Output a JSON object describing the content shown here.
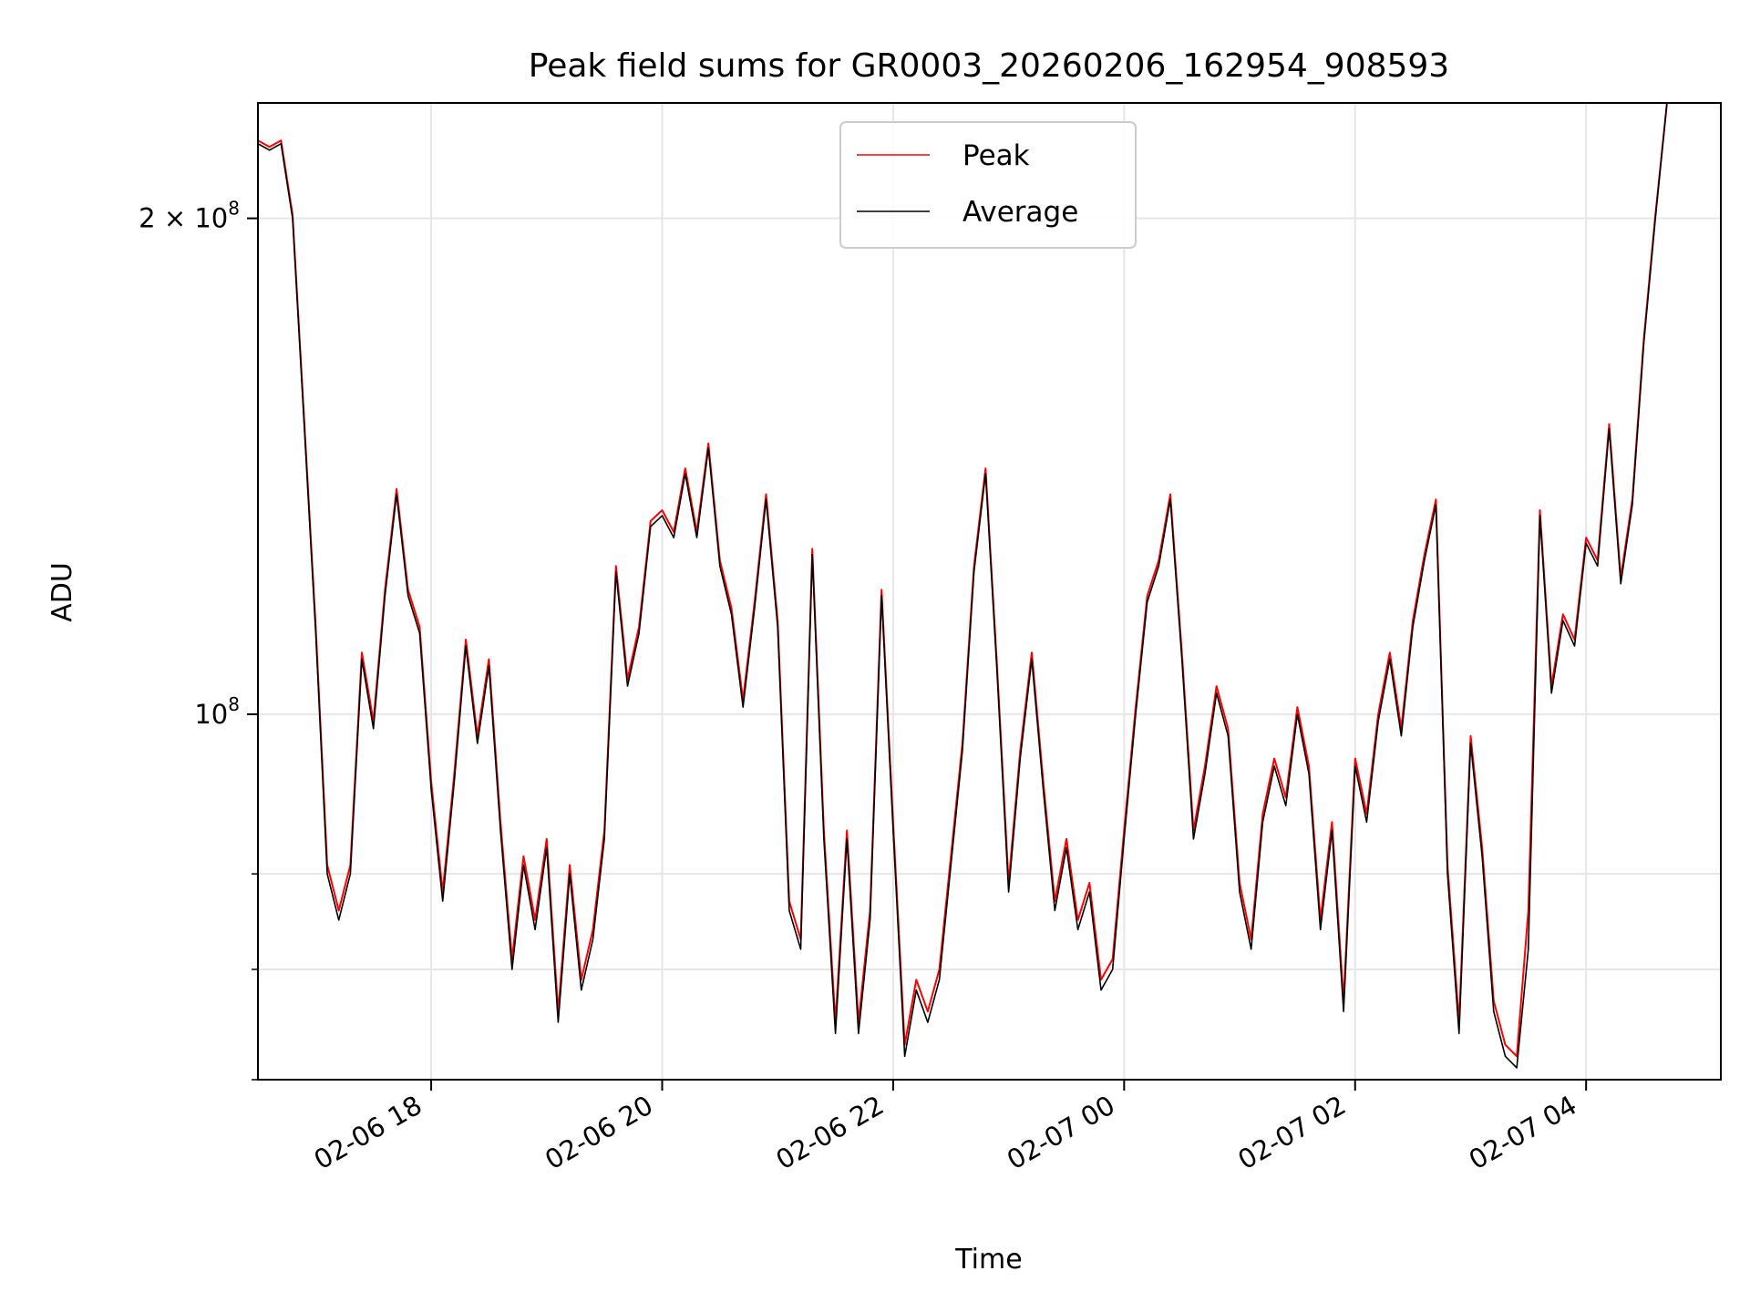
{
  "chart_data": {
    "type": "line",
    "title": "Peak field sums for GR0003_20260206_162954_908593",
    "xlabel": "Time",
    "ylabel": "ADU",
    "y_scale": "log",
    "grid": true,
    "legend_position": "top-center",
    "xlim": [
      "2026-02-06 16:30",
      "2026-02-07 05:10"
    ],
    "ylim": [
      60000000,
      235000000
    ],
    "x_ticks": [
      "2026-02-06 18:00",
      "2026-02-06 20:00",
      "2026-02-06 22:00",
      "2026-02-07 00:00",
      "2026-02-07 02:00",
      "2026-02-07 04:00"
    ],
    "x_tick_labels": [
      "02-06 18",
      "02-06 20",
      "02-06 22",
      "02-07 00",
      "02-07 02",
      "02-07 04"
    ],
    "y_major_ticks": [
      100000000,
      200000000
    ],
    "y_major_tick_labels": [
      {
        "mantissa": "",
        "base": "10",
        "exponent": "8"
      },
      {
        "mantissa": "2 × ",
        "base": "10",
        "exponent": "8"
      }
    ],
    "y_minor_ticks": [
      60000000,
      70000000,
      80000000
    ],
    "series": [
      {
        "name": "Peak",
        "color": "#ff0000"
      },
      {
        "name": "Average",
        "color": "#000000"
      }
    ],
    "x": [
      "2026-02-06 16:30",
      "2026-02-06 16:36",
      "2026-02-06 16:42",
      "2026-02-06 16:48",
      "2026-02-06 16:54",
      "2026-02-06 17:00",
      "2026-02-06 17:06",
      "2026-02-06 17:12",
      "2026-02-06 17:18",
      "2026-02-06 17:24",
      "2026-02-06 17:30",
      "2026-02-06 17:36",
      "2026-02-06 17:42",
      "2026-02-06 17:48",
      "2026-02-06 17:54",
      "2026-02-06 18:00",
      "2026-02-06 18:06",
      "2026-02-06 18:12",
      "2026-02-06 18:18",
      "2026-02-06 18:24",
      "2026-02-06 18:30",
      "2026-02-06 18:36",
      "2026-02-06 18:42",
      "2026-02-06 18:48",
      "2026-02-06 18:54",
      "2026-02-06 19:00",
      "2026-02-06 19:06",
      "2026-02-06 19:12",
      "2026-02-06 19:18",
      "2026-02-06 19:24",
      "2026-02-06 19:30",
      "2026-02-06 19:36",
      "2026-02-06 19:42",
      "2026-02-06 19:48",
      "2026-02-06 19:54",
      "2026-02-06 20:00",
      "2026-02-06 20:06",
      "2026-02-06 20:12",
      "2026-02-06 20:18",
      "2026-02-06 20:24",
      "2026-02-06 20:30",
      "2026-02-06 20:36",
      "2026-02-06 20:42",
      "2026-02-06 20:48",
      "2026-02-06 20:54",
      "2026-02-06 21:00",
      "2026-02-06 21:06",
      "2026-02-06 21:12",
      "2026-02-06 21:18",
      "2026-02-06 21:24",
      "2026-02-06 21:30",
      "2026-02-06 21:36",
      "2026-02-06 21:42",
      "2026-02-06 21:48",
      "2026-02-06 21:54",
      "2026-02-06 22:00",
      "2026-02-06 22:06",
      "2026-02-06 22:12",
      "2026-02-06 22:18",
      "2026-02-06 22:24",
      "2026-02-06 22:30",
      "2026-02-06 22:36",
      "2026-02-06 22:42",
      "2026-02-06 22:48",
      "2026-02-06 22:54",
      "2026-02-06 23:00",
      "2026-02-06 23:06",
      "2026-02-06 23:12",
      "2026-02-06 23:18",
      "2026-02-06 23:24",
      "2026-02-06 23:30",
      "2026-02-06 23:36",
      "2026-02-06 23:42",
      "2026-02-06 23:48",
      "2026-02-06 23:54",
      "2026-02-07 00:00",
      "2026-02-07 00:06",
      "2026-02-07 00:12",
      "2026-02-07 00:18",
      "2026-02-07 00:24",
      "2026-02-07 00:30",
      "2026-02-07 00:36",
      "2026-02-07 00:42",
      "2026-02-07 00:48",
      "2026-02-07 00:54",
      "2026-02-07 01:00",
      "2026-02-07 01:06",
      "2026-02-07 01:12",
      "2026-02-07 01:18",
      "2026-02-07 01:24",
      "2026-02-07 01:30",
      "2026-02-07 01:36",
      "2026-02-07 01:42",
      "2026-02-07 01:48",
      "2026-02-07 01:54",
      "2026-02-07 02:00",
      "2026-02-07 02:06",
      "2026-02-07 02:12",
      "2026-02-07 02:18",
      "2026-02-07 02:24",
      "2026-02-07 02:30",
      "2026-02-07 02:36",
      "2026-02-07 02:42",
      "2026-02-07 02:48",
      "2026-02-07 02:54",
      "2026-02-07 03:00",
      "2026-02-07 03:06",
      "2026-02-07 03:12",
      "2026-02-07 03:18",
      "2026-02-07 03:24",
      "2026-02-07 03:30",
      "2026-02-07 03:36",
      "2026-02-07 03:42",
      "2026-02-07 03:48",
      "2026-02-07 03:54",
      "2026-02-07 04:00",
      "2026-02-07 04:06",
      "2026-02-07 04:12",
      "2026-02-07 04:18",
      "2026-02-07 04:24",
      "2026-02-07 04:30",
      "2026-02-07 04:36",
      "2026-02-07 04:42",
      "2026-02-07 04:48",
      "2026-02-07 04:54",
      "2026-02-07 05:00",
      "2026-02-07 05:06"
    ],
    "average": [
      222000000,
      220000000,
      222000000,
      200000000,
      150000000,
      112000000,
      80000000,
      75000000,
      80000000,
      108000000,
      98000000,
      118000000,
      136000000,
      118000000,
      112000000,
      90000000,
      77000000,
      91000000,
      110000000,
      96000000,
      107000000,
      85000000,
      70000000,
      81000000,
      74000000,
      83000000,
      65000000,
      80000000,
      68000000,
      73000000,
      84000000,
      122000000,
      104000000,
      112000000,
      130000000,
      132000000,
      128000000,
      140000000,
      128000000,
      145000000,
      123000000,
      115000000,
      101000000,
      116000000,
      135000000,
      113000000,
      76000000,
      72000000,
      125000000,
      84000000,
      64000000,
      84000000,
      64000000,
      75000000,
      118000000,
      85000000,
      62000000,
      68000000,
      65000000,
      69000000,
      81000000,
      95000000,
      122000000,
      140000000,
      106000000,
      78000000,
      94000000,
      108000000,
      90000000,
      76000000,
      83000000,
      74000000,
      78000000,
      68000000,
      70000000,
      84000000,
      100000000,
      117000000,
      123000000,
      135000000,
      108000000,
      84000000,
      92000000,
      103000000,
      97000000,
      78000000,
      72000000,
      86000000,
      93000000,
      88000000,
      100000000,
      92000000,
      74000000,
      85000000,
      66000000,
      93000000,
      86000000,
      99000000,
      108000000,
      97000000,
      113000000,
      124000000,
      134000000,
      80000000,
      64000000,
      96000000,
      82000000,
      66000000,
      62000000,
      61000000,
      72000000,
      132000000,
      103000000,
      114000000,
      110000000,
      127000000,
      123000000,
      149000000,
      120000000,
      134000000,
      168000000,
      200000000,
      235000000,
      235000000
    ],
    "peak": [
      223000000,
      221000000,
      223000000,
      201000000,
      151000000,
      113000000,
      81000000,
      76000000,
      81000000,
      109000000,
      99000000,
      119000000,
      137000000,
      119000000,
      113000000,
      91000000,
      78000000,
      92000000,
      111000000,
      97000000,
      108000000,
      86000000,
      71000000,
      82000000,
      75000000,
      84000000,
      66000000,
      81000000,
      69000000,
      74000000,
      85000000,
      123000000,
      105000000,
      113000000,
      131000000,
      133000000,
      129000000,
      141000000,
      129000000,
      146000000,
      124000000,
      116000000,
      102000000,
      117000000,
      136000000,
      114000000,
      77000000,
      73000000,
      126000000,
      85000000,
      65000000,
      85000000,
      65000000,
      76000000,
      119000000,
      86000000,
      63000000,
      69000000,
      66000000,
      70000000,
      82000000,
      96000000,
      123000000,
      141000000,
      107000000,
      79000000,
      95000000,
      109000000,
      91000000,
      77000000,
      84000000,
      75000000,
      79000000,
      69000000,
      71000000,
      85000000,
      101000000,
      118000000,
      124000000,
      136000000,
      109000000,
      85000000,
      93000000,
      104000000,
      98000000,
      79000000,
      73000000,
      87000000,
      94000000,
      89000000,
      101000000,
      93000000,
      75000000,
      86000000,
      67000000,
      94000000,
      87000000,
      100000000,
      109000000,
      98000000,
      114000000,
      125000000,
      135000000,
      81000000,
      65000000,
      97000000,
      83000000,
      67000000,
      63000000,
      62000000,
      76000000,
      133000000,
      104000000,
      115000000,
      111000000,
      128000000,
      124000000,
      150000000,
      121000000,
      135000000,
      169000000,
      201000000,
      235000000,
      235000000
    ]
  }
}
